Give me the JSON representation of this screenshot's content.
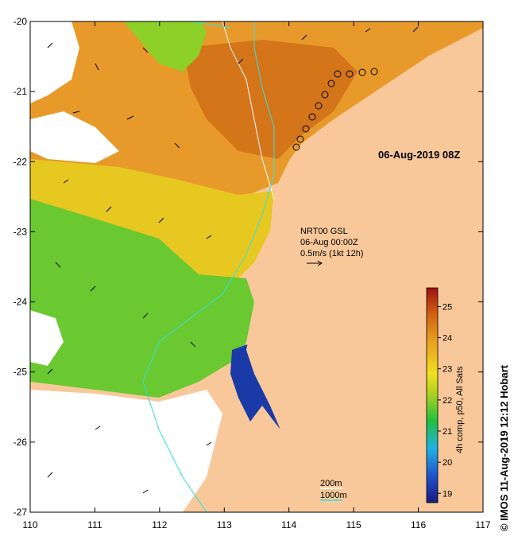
{
  "timestamp": "06-Aug-2019 08Z",
  "current_info": {
    "line1": "NRT00 GSL",
    "line2": "06-Aug 00:00Z",
    "line3": "0.5m/s (1kt 12h)"
  },
  "bathymetry_legend": {
    "contour_200": "200m",
    "contour_1000": "1000m",
    "contour_200_color": "#ffffff",
    "contour_1000_color": "#33e0e0"
  },
  "colorbar": {
    "title": "4h comp, p50, All Sats",
    "ticks": [
      "19",
      "20",
      "21",
      "22",
      "23",
      "24",
      "25"
    ],
    "min": 18.7,
    "max": 25.6
  },
  "credit": "© IMOS 11-Aug-2019 12:12 Hobart",
  "axes": {
    "x_ticks": [
      "110",
      "111",
      "112",
      "113",
      "114",
      "115",
      "116",
      "117"
    ],
    "y_ticks": [
      "-20",
      "-21",
      "-22",
      "-23",
      "-24",
      "-25",
      "-26",
      "-27"
    ]
  },
  "colors": {
    "land": "#f8c89a",
    "no_data": "#ffffff",
    "warm": "#e08a1c",
    "cold": "#1a2a9a"
  }
}
